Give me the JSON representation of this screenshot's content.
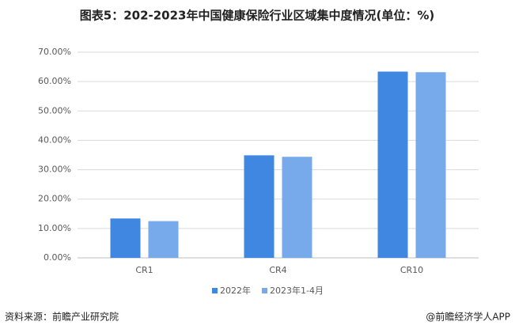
{
  "chart_data": {
    "type": "bar",
    "title": "图表5：202-2023年中国健康保险行业区域集中度情况(单位：%)",
    "categories": [
      "CR1",
      "CR4",
      "CR10"
    ],
    "series": [
      {
        "name": "2022年",
        "color": "#3f87e0",
        "values": [
          13.4,
          34.9,
          63.4
        ]
      },
      {
        "name": "2023年1-4月",
        "color": "#77aaeb",
        "values": [
          12.5,
          34.4,
          63.2
        ]
      }
    ],
    "ylim": [
      0,
      70
    ],
    "yticks": [
      {
        "value": 0,
        "label": "0.00%"
      },
      {
        "value": 10,
        "label": "10.00%"
      },
      {
        "value": 20,
        "label": "20.00%"
      },
      {
        "value": 30,
        "label": "30.00%"
      },
      {
        "value": 40,
        "label": "40.00%"
      },
      {
        "value": 50,
        "label": "50.00%"
      },
      {
        "value": 60,
        "label": "60.00%"
      },
      {
        "value": 70,
        "label": "70.00%"
      }
    ],
    "grid": true,
    "source": "资料来源：前瞻产业研究院",
    "credit": "@前瞻经济学人APP"
  }
}
